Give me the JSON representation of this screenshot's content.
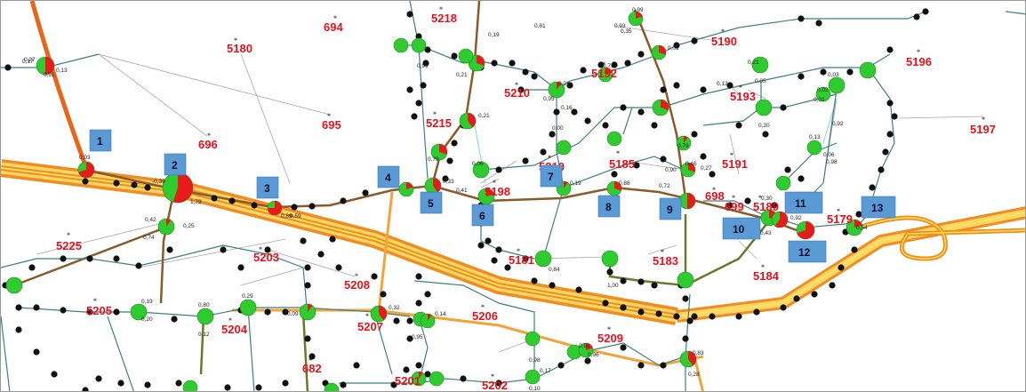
{
  "map": {
    "colors": {
      "highway": "#f28c1f",
      "highway_center": "#f7e35a",
      "feeder_brown": "#8b5a2b",
      "feeder_olive": "#6b7a2a",
      "feeder_teal": "#3f7f7f",
      "link_gray": "#9a9a9a",
      "node_green": "#2ecc2e",
      "node_red": "#e81a1a",
      "dot": "#111111",
      "label_red": "#e8111b",
      "marker_blue": "#5b9bd5"
    },
    "substations": [
      "694",
      "5218",
      "5190",
      "5196",
      "5180",
      "5192",
      "5210",
      "5193",
      "5215",
      "695",
      "696",
      "5197",
      "5185",
      "5191",
      "5210",
      "5198",
      "698",
      "699",
      "5189",
      "5179",
      "5225",
      "5203",
      "5208",
      "5181",
      "5183",
      "5184",
      "5205",
      "5204",
      "5206",
      "5207",
      "5209",
      "682",
      "5201",
      "5202"
    ],
    "markers": [
      "1",
      "2",
      "3",
      "4",
      "5",
      "6",
      "7",
      "8",
      "9",
      "10",
      "11",
      "12",
      "13"
    ],
    "values": [
      "0,27",
      "0,13",
      "0,03",
      "0,91",
      "0,99",
      "0,17",
      "0,19",
      "0,81",
      "0,93",
      "0,21",
      "0,21",
      "0,79",
      "0,33",
      "0,06",
      "0,41",
      "-0,39",
      "1,79",
      "0,59",
      "0,89",
      "0,42",
      "0,74",
      "0,25",
      "0,19",
      "0,20",
      "0,80",
      "0,12",
      "0,29",
      "0,09",
      "0,32",
      "0,14",
      "0,95",
      "0,10",
      "0,17",
      "0,83",
      "0,28",
      "0,46",
      "0,54",
      "0,43",
      "0,92",
      "0,98",
      "0,16",
      "0,84",
      "1,00",
      "0,98",
      "0,96",
      "0,91",
      "0,90",
      "0,79",
      "0,72",
      "0,88",
      "0,27",
      "0,05",
      "0,03",
      "0,02",
      "0,01",
      "0,21",
      "0,20",
      "0,95",
      "0,71",
      "0,35",
      "0,99",
      "0,01",
      "0,12",
      "0,92",
      "0,13",
      "0,06",
      "0,00",
      "0,01",
      "0,30",
      "0,19"
    ]
  }
}
